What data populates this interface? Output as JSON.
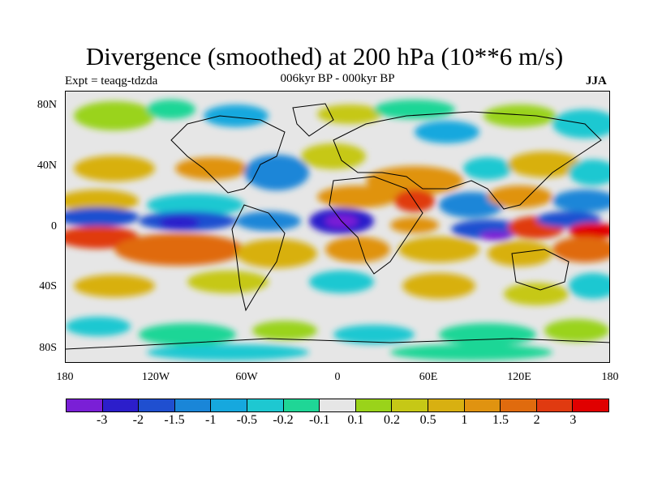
{
  "title": "Divergence (smoothed) at 200 hPa (10**6 m/s)",
  "experiment": "Expt = teaqg-tdzda",
  "subtitle": "006kyr BP - 000kyr BP",
  "season": "JJA",
  "lat_labels": [
    "80N",
    "40N",
    "0",
    "40S",
    "80S"
  ],
  "lon_labels": [
    "180",
    "120W",
    "60W",
    "0",
    "60E",
    "120E",
    "180"
  ],
  "colorbar": {
    "colors": [
      "#7a1fd6",
      "#2c1ecb",
      "#1f4fd0",
      "#1a86d8",
      "#16a8de",
      "#1ec8d1",
      "#1fd696",
      "#e6e6e6",
      "#9ad31a",
      "#c6c816",
      "#d8b011",
      "#e09310",
      "#e06b0e",
      "#e03a10",
      "#e00000"
    ],
    "labels": [
      "-3",
      "-2",
      "-1.5",
      "-1",
      "-0.5",
      "-0.2",
      "-0.1",
      "0.1",
      "0.2",
      "0.5",
      "1",
      "1.5",
      "2",
      "3"
    ]
  }
}
